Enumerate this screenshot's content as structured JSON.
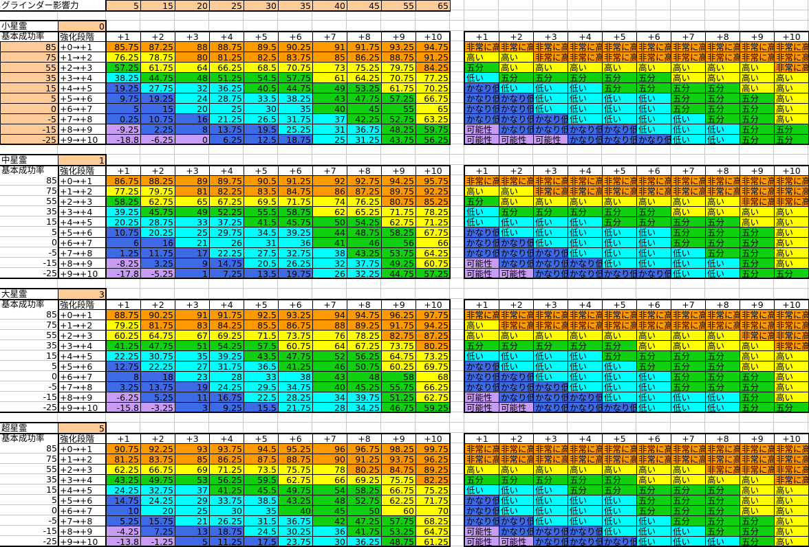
{
  "grinder": {
    "label": "グラインダー影響力",
    "values": [
      5,
      15,
      20,
      25,
      30,
      35,
      40,
      45,
      55,
      65
    ]
  },
  "header": {
    "base_label": "基本成功率",
    "stage_label": "強化段階",
    "columns": [
      "+1",
      "+2",
      "+3",
      "+4",
      "+5",
      "+6",
      "+7",
      "+8",
      "+9",
      "+10"
    ]
  },
  "bases": [
    85,
    75,
    55,
    35,
    15,
    5,
    0,
    -5,
    -15,
    -25
  ],
  "stages": [
    "+0→+1",
    "+1→+2",
    "+2→+3",
    "+3→+4",
    "+4→+5",
    "+5→+6",
    "+6→+7",
    "+7→+8",
    "+8→+9",
    "+9→+10"
  ],
  "levels": [
    {
      "label": "非常に高い",
      "min": 80,
      "color": "#ff9900"
    },
    {
      "label": "高い",
      "min": 60,
      "color": "#ffff00"
    },
    {
      "label": "五分",
      "min": 40,
      "color": "#11d011"
    },
    {
      "label": "低い",
      "min": 20,
      "color": "#00ffff"
    },
    {
      "label": "かなり低い",
      "min": 0.01,
      "color": "#3f6ae6"
    },
    {
      "label": "可能性",
      "min": -1000,
      "color": "#c89cf5"
    }
  ],
  "tables": [
    {
      "name": "小星霊",
      "star": 0,
      "values": [
        [
          85.75,
          87.25,
          88,
          88.75,
          89.5,
          90.25,
          91,
          91.75,
          93.25,
          94.75
        ],
        [
          76.25,
          78.75,
          80,
          81.25,
          82.5,
          83.75,
          85,
          86.25,
          88.75,
          91.25
        ],
        [
          57.25,
          61.75,
          64,
          66.25,
          68.5,
          70.75,
          73,
          75.25,
          79.75,
          84.25
        ],
        [
          38.25,
          44.75,
          48,
          51.25,
          54.5,
          57.75,
          61,
          64.25,
          70.75,
          77.25
        ],
        [
          19.25,
          27.75,
          32,
          36.25,
          40.5,
          44.75,
          49,
          53.25,
          61.75,
          70.25
        ],
        [
          9.75,
          19.25,
          24,
          28.75,
          33.5,
          38.25,
          43,
          47.75,
          57.25,
          66.75
        ],
        [
          5,
          15,
          20,
          25,
          30,
          35,
          40,
          45,
          55,
          65
        ],
        [
          0.25,
          10.75,
          16,
          21.25,
          26.5,
          31.75,
          37,
          42.25,
          52.75,
          63.25
        ],
        [
          -9.25,
          2.25,
          8,
          13.75,
          19.5,
          25.25,
          31,
          36.75,
          48.25,
          59.75
        ],
        [
          -18.8,
          -6.25,
          0,
          6.25,
          12.5,
          18.75,
          25,
          31.25,
          43.75,
          56.25
        ]
      ]
    },
    {
      "name": "中星霊",
      "star": 1,
      "values": [
        [
          86.75,
          88.25,
          89,
          89.75,
          90.5,
          91.25,
          92,
          92.75,
          94.25,
          95.75
        ],
        [
          77.25,
          79.75,
          81,
          82.25,
          83.5,
          84.75,
          86,
          87.25,
          89.75,
          92.25
        ],
        [
          58.25,
          62.75,
          65,
          67.25,
          69.5,
          71.75,
          74,
          76.25,
          80.75,
          85.25
        ],
        [
          39.25,
          45.75,
          49,
          52.25,
          55.5,
          58.75,
          62,
          65.25,
          71.75,
          78.25
        ],
        [
          20.25,
          28.75,
          33,
          37.25,
          41.5,
          45.75,
          50,
          54.25,
          62.75,
          71.25
        ],
        [
          10.75,
          20.25,
          25,
          29.75,
          34.5,
          39.25,
          44,
          48.75,
          58.25,
          67.75
        ],
        [
          6,
          16,
          21,
          26,
          31,
          36,
          41,
          46,
          56,
          66
        ],
        [
          1.25,
          11.75,
          17,
          22.25,
          27.5,
          32.75,
          38,
          43.25,
          53.75,
          64.25
        ],
        [
          -8.25,
          3.25,
          9,
          14.75,
          20.5,
          26.25,
          32,
          37.75,
          49.25,
          60.75
        ],
        [
          -17.8,
          -5.25,
          1,
          7.25,
          13.5,
          19.75,
          26,
          32.25,
          44.75,
          57.25
        ]
      ]
    },
    {
      "name": "大星霊",
      "star": 3,
      "values": [
        [
          88.75,
          90.25,
          91,
          91.75,
          92.5,
          93.25,
          94,
          94.75,
          96.25,
          97.75
        ],
        [
          79.25,
          81.75,
          83,
          84.25,
          85.5,
          86.75,
          88,
          89.25,
          91.75,
          94.25
        ],
        [
          60.25,
          64.75,
          67,
          69.25,
          71.5,
          73.75,
          76,
          78.25,
          82.75,
          87.25
        ],
        [
          41.25,
          47.75,
          51,
          54.25,
          57.5,
          60.75,
          64,
          67.25,
          73.75,
          80.25
        ],
        [
          22.25,
          30.75,
          35,
          39.25,
          43.5,
          47.75,
          52,
          56.25,
          64.75,
          73.25
        ],
        [
          12.75,
          22.25,
          27,
          31.75,
          36.5,
          41.25,
          46,
          50.75,
          60.25,
          69.75
        ],
        [
          8,
          18,
          23,
          28,
          33,
          38,
          43,
          48,
          58,
          68
        ],
        [
          3.25,
          13.75,
          19,
          24.25,
          29.5,
          34.75,
          40,
          45.25,
          55.75,
          66.25
        ],
        [
          -6.25,
          5.25,
          11,
          16.75,
          22.5,
          28.25,
          34,
          39.75,
          51.25,
          62.75
        ],
        [
          -15.8,
          -3.25,
          3,
          9.25,
          15.5,
          21.75,
          28,
          34.25,
          46.75,
          59.25
        ]
      ]
    },
    {
      "name": "超星霊",
      "star": 5,
      "values": [
        [
          90.75,
          92.25,
          93,
          93.75,
          94.5,
          95.25,
          96,
          96.75,
          98.25,
          99.75
        ],
        [
          81.25,
          83.75,
          85,
          86.25,
          87.5,
          88.75,
          90,
          91.25,
          93.75,
          96.25
        ],
        [
          62.25,
          66.75,
          69,
          71.25,
          73.5,
          75.75,
          78,
          80.25,
          84.75,
          89.25
        ],
        [
          43.25,
          49.75,
          53,
          56.25,
          59.5,
          62.75,
          66,
          69.25,
          75.75,
          82.25
        ],
        [
          24.25,
          32.75,
          37,
          41.25,
          45.5,
          49.75,
          54,
          58.25,
          66.75,
          75.25
        ],
        [
          14.75,
          24.25,
          29,
          33.75,
          38.5,
          43.25,
          48,
          52.75,
          62.25,
          71.75
        ],
        [
          10,
          20,
          25,
          30,
          35,
          40,
          45,
          50,
          60,
          70
        ],
        [
          5.25,
          15.75,
          21,
          26.25,
          31.5,
          36.75,
          42,
          47.25,
          57.75,
          68.25
        ],
        [
          -4.25,
          7.25,
          13,
          18.75,
          24.5,
          30.25,
          36,
          41.75,
          53.25,
          64.75
        ],
        [
          -13.8,
          -1.25,
          5,
          11.25,
          17.5,
          23.75,
          30,
          36.25,
          48.75,
          61.25
        ]
      ]
    }
  ]
}
